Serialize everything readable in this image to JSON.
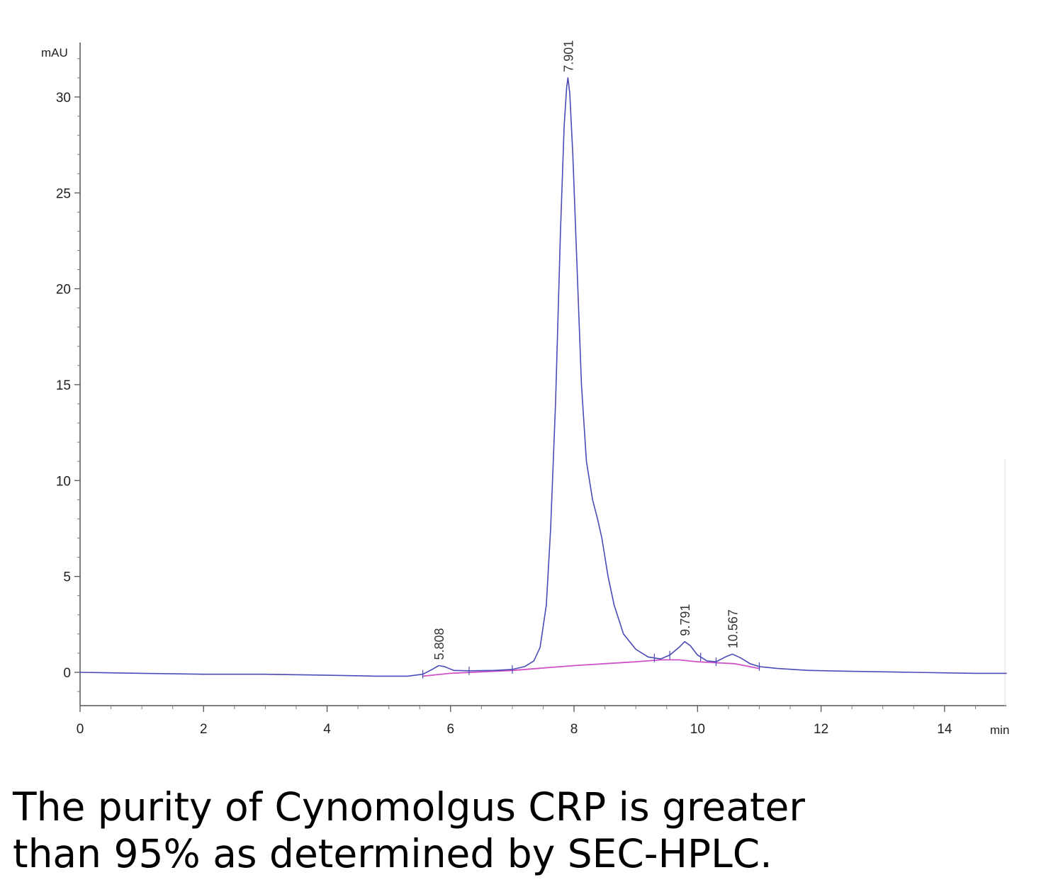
{
  "chart_data": {
    "type": "line",
    "title": "",
    "xlabel": "",
    "ylabel": "",
    "x_unit": "min",
    "y_unit": "mAU",
    "xlim": [
      0,
      15
    ],
    "ylim": [
      -1.8,
      33
    ],
    "x_ticks": [
      0,
      2,
      4,
      6,
      8,
      10,
      12,
      14
    ],
    "y_ticks": [
      0,
      5,
      10,
      15,
      20,
      25,
      30
    ],
    "grid": false,
    "colors": {
      "signal": "#4a4ab8",
      "baseline": "#d050c8"
    },
    "series": [
      {
        "role": "signal",
        "x": [
          0,
          1,
          2,
          3,
          4,
          4.8,
          5.3,
          5.55,
          5.7,
          5.808,
          5.9,
          6.05,
          6.3,
          6.7,
          7.0,
          7.2,
          7.35,
          7.45,
          7.55,
          7.62,
          7.7,
          7.78,
          7.84,
          7.88,
          7.901,
          7.93,
          7.98,
          8.05,
          8.12,
          8.2,
          8.3,
          8.38,
          8.45,
          8.55,
          8.65,
          8.8,
          9.0,
          9.2,
          9.4,
          9.55,
          9.7,
          9.791,
          9.88,
          10.0,
          10.15,
          10.3,
          10.45,
          10.567,
          10.7,
          10.85,
          11.0,
          11.3,
          11.8,
          12.5,
          13.5,
          14.5,
          15
        ],
        "y": [
          0,
          -0.05,
          -0.1,
          -0.1,
          -0.15,
          -0.2,
          -0.2,
          -0.1,
          0.15,
          0.35,
          0.3,
          0.1,
          0.08,
          0.1,
          0.15,
          0.3,
          0.6,
          1.3,
          3.5,
          7.5,
          14,
          23,
          28.5,
          30.5,
          31,
          30.2,
          27,
          21,
          15,
          11,
          9,
          8,
          7,
          5,
          3.5,
          2,
          1.2,
          0.8,
          0.7,
          0.9,
          1.3,
          1.6,
          1.4,
          0.9,
          0.6,
          0.55,
          0.8,
          0.95,
          0.75,
          0.45,
          0.3,
          0.2,
          0.1,
          0.05,
          0,
          -0.05,
          -0.05
        ]
      },
      {
        "role": "baseline",
        "x": [
          5.55,
          6.0,
          7.0,
          8.0,
          9.0,
          9.4,
          9.7,
          10.0,
          10.3,
          10.6,
          11.0
        ],
        "y": [
          -0.2,
          -0.05,
          0.1,
          0.35,
          0.55,
          0.65,
          0.65,
          0.55,
          0.5,
          0.45,
          0.2
        ]
      }
    ],
    "peaks": [
      {
        "x": 5.808,
        "y": 0.35,
        "label": "5.808"
      },
      {
        "x": 7.901,
        "y": 31,
        "label": "7.901"
      },
      {
        "x": 9.791,
        "y": 1.6,
        "label": "9.791"
      },
      {
        "x": 10.567,
        "y": 0.95,
        "label": "10.567"
      }
    ],
    "integration_marks": [
      5.55,
      6.3,
      7.0,
      9.3,
      9.55,
      10.05,
      10.3,
      11.0
    ]
  },
  "caption": {
    "line1": "The purity of Cynomolgus CRP is greater",
    "line2": "than 95% as determined by SEC-HPLC."
  }
}
